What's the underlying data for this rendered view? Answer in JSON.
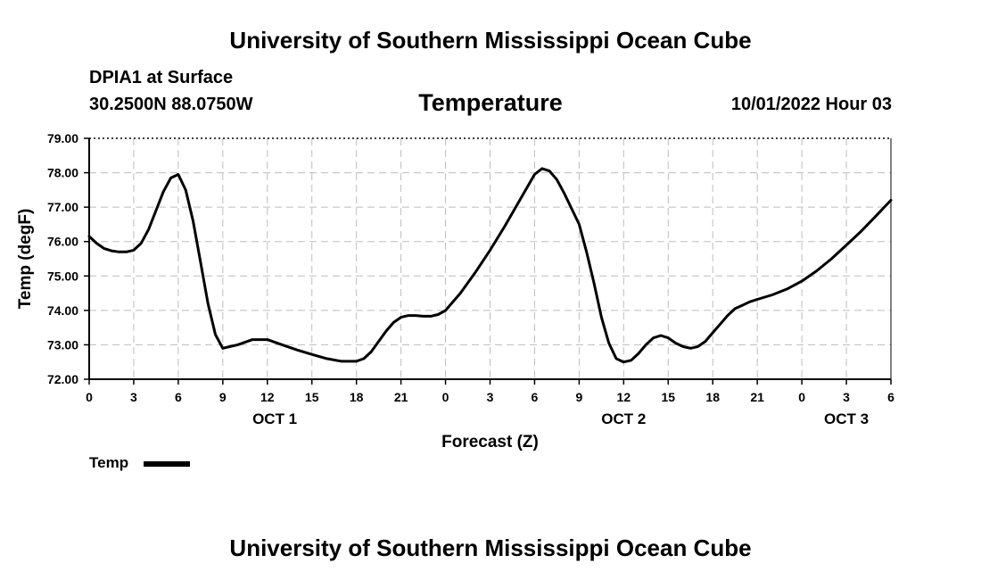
{
  "header": {
    "top_title": "University of Southern Mississippi Ocean Cube",
    "bottom_title": "University of Southern Mississippi Ocean Cube",
    "station": "DPIA1 at Surface",
    "coordinates": "30.2500N  88.0750W",
    "parameter": "Temperature",
    "datetime": "10/01/2022 Hour 03"
  },
  "legend": {
    "label": "Temp",
    "color": "#000000"
  },
  "chart_data": {
    "type": "line",
    "title": "Temperature",
    "xlabel": "Forecast (Z)",
    "ylabel": "Temp (degF)",
    "xlim": [
      0,
      54
    ],
    "ylim": [
      72.0,
      79.0
    ],
    "grid": true,
    "legend_position": "bottom-left",
    "y_ticks": [
      "72.00",
      "73.00",
      "74.00",
      "75.00",
      "76.00",
      "77.00",
      "78.00",
      "79.00"
    ],
    "x_ticks": [
      {
        "x": 0,
        "label": "0"
      },
      {
        "x": 3,
        "label": "3"
      },
      {
        "x": 6,
        "label": "6"
      },
      {
        "x": 9,
        "label": "9"
      },
      {
        "x": 12,
        "label": "12"
      },
      {
        "x": 15,
        "label": "15"
      },
      {
        "x": 18,
        "label": "18"
      },
      {
        "x": 21,
        "label": "21"
      },
      {
        "x": 24,
        "label": "0"
      },
      {
        "x": 27,
        "label": "3"
      },
      {
        "x": 30,
        "label": "6"
      },
      {
        "x": 33,
        "label": "9"
      },
      {
        "x": 36,
        "label": "12"
      },
      {
        "x": 39,
        "label": "15"
      },
      {
        "x": 42,
        "label": "18"
      },
      {
        "x": 45,
        "label": "21"
      },
      {
        "x": 48,
        "label": "0"
      },
      {
        "x": 51,
        "label": "3"
      },
      {
        "x": 54,
        "label": "6"
      }
    ],
    "date_labels": [
      {
        "x": 12.5,
        "label": "OCT 1"
      },
      {
        "x": 36,
        "label": "OCT 2"
      },
      {
        "x": 51,
        "label": "OCT 3"
      }
    ],
    "series": [
      {
        "name": "Temp",
        "color": "#000000",
        "x": [
          0,
          0.5,
          1,
          1.5,
          2,
          2.5,
          3,
          3.5,
          4,
          4.5,
          5,
          5.5,
          6,
          6.5,
          7,
          7.5,
          8,
          8.5,
          9,
          10,
          11,
          12,
          13,
          14,
          15,
          16,
          17,
          18,
          18.5,
          19,
          19.5,
          20,
          20.5,
          21,
          21.5,
          22,
          22.5,
          23,
          23.5,
          24,
          25,
          26,
          27,
          28,
          29,
          30,
          30.5,
          31,
          31.5,
          32,
          32.5,
          33,
          33.5,
          34,
          34.5,
          35,
          35.5,
          36,
          36.5,
          37,
          37.5,
          38,
          38.5,
          39,
          39.5,
          40,
          40.5,
          41,
          41.5,
          42,
          42.5,
          43,
          43.5,
          44,
          44.5,
          45,
          46,
          47,
          48,
          49,
          50,
          51,
          52,
          53,
          54
        ],
        "values": [
          76.15,
          75.95,
          75.8,
          75.73,
          75.7,
          75.7,
          75.75,
          75.95,
          76.35,
          76.9,
          77.45,
          77.85,
          77.95,
          77.5,
          76.6,
          75.4,
          74.2,
          73.3,
          72.9,
          73.0,
          73.15,
          73.15,
          73.0,
          72.85,
          72.72,
          72.6,
          72.52,
          72.52,
          72.6,
          72.8,
          73.1,
          73.4,
          73.65,
          73.8,
          73.85,
          73.85,
          73.83,
          73.83,
          73.88,
          74.0,
          74.5,
          75.1,
          75.75,
          76.45,
          77.2,
          77.95,
          78.12,
          78.05,
          77.8,
          77.4,
          76.95,
          76.5,
          75.7,
          74.8,
          73.8,
          73.05,
          72.6,
          72.5,
          72.55,
          72.75,
          73.0,
          73.2,
          73.27,
          73.2,
          73.05,
          72.95,
          72.9,
          72.95,
          73.1,
          73.35,
          73.6,
          73.85,
          74.05,
          74.15,
          74.25,
          74.32,
          74.45,
          74.62,
          74.85,
          75.15,
          75.5,
          75.9,
          76.3,
          76.75,
          77.2
        ]
      }
    ]
  }
}
